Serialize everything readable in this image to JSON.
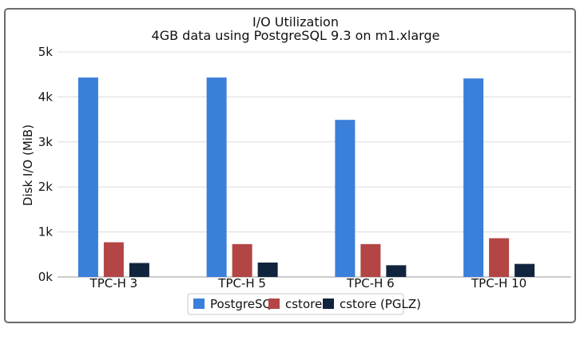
{
  "chart_data": {
    "type": "bar",
    "title": "I/O Utilization",
    "subtitle": "4GB data using PostgreSQL 9.3 on m1.xlarge",
    "xlabel": "",
    "ylabel": "Disk I/O (MiB)",
    "ylim": [
      0,
      5000
    ],
    "yticks": [
      0,
      1000,
      2000,
      3000,
      4000,
      5000
    ],
    "ytick_labels": [
      "0k",
      "1k",
      "2k",
      "3k",
      "4k",
      "5k"
    ],
    "grid": true,
    "legend_position": "bottom-center",
    "categories": [
      "TPC-H 3",
      "TPC-H 5",
      "TPC-H 6",
      "TPC-H 10"
    ],
    "series": [
      {
        "name": "PostgreSQL",
        "color": "#3a7fd9",
        "values": [
          4430,
          4430,
          3490,
          4410
        ]
      },
      {
        "name": "cstore",
        "color": "#b34545",
        "values": [
          770,
          730,
          730,
          860
        ]
      },
      {
        "name": "cstore (PGLZ)",
        "color": "#11243e",
        "values": [
          310,
          320,
          260,
          290
        ]
      }
    ]
  }
}
